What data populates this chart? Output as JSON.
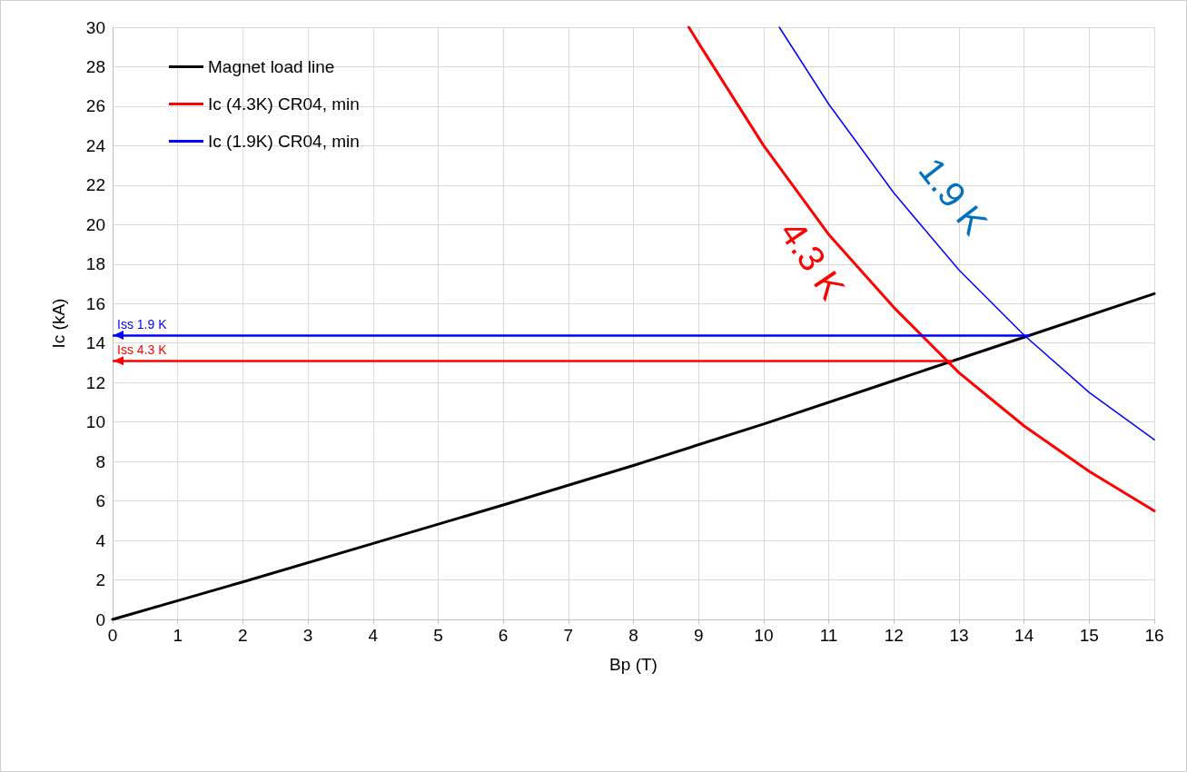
{
  "chart_data": {
    "type": "line",
    "xlabel": "Bp (T)",
    "ylabel": "Ic (kA)",
    "xlim": [
      0,
      16
    ],
    "xticks": [
      0,
      1,
      2,
      3,
      4,
      5,
      6,
      7,
      8,
      9,
      10,
      11,
      12,
      13,
      14,
      15,
      16
    ],
    "ylim": [
      0,
      30
    ],
    "yticks": [
      0,
      2,
      4,
      6,
      8,
      10,
      12,
      14,
      16,
      18,
      20,
      22,
      24,
      26,
      28,
      30
    ],
    "grid": true,
    "legend": "top left",
    "marker": "none",
    "line_style": "solid",
    "series": [
      {
        "name": "Magnet load line",
        "color": "#000000",
        "x": [
          0,
          1,
          2,
          4,
          6,
          8,
          10,
          12,
          14,
          16
        ],
        "values": [
          0,
          0.95,
          1.9,
          3.85,
          5.8,
          7.8,
          9.9,
          12.1,
          14.3,
          16.5
        ]
      },
      {
        "name": "Ic (4.3K) CR04, min",
        "color": "#ff0000",
        "x": [
          8.85,
          9,
          10,
          11,
          12,
          13,
          14,
          15,
          16
        ],
        "values": [
          30,
          29.2,
          24,
          19.5,
          15.8,
          12.5,
          9.8,
          7.5,
          5.5
        ]
      },
      {
        "name": "Ic (1.9K) CR04, min",
        "color": "#0000ff",
        "x": [
          10.24,
          11,
          12,
          13,
          14,
          15,
          16
        ],
        "values": [
          30,
          26.1,
          21.6,
          17.7,
          14.4,
          11.5,
          9.1
        ]
      }
    ],
    "ref_lines": [
      {
        "axis": "y",
        "value": 14.4,
        "label": "Iss 1.9 K",
        "color": "#0000ff"
      },
      {
        "axis": "y",
        "value": 13.1,
        "label": "Iss 4.3 K",
        "color": "#ff0000"
      }
    ],
    "annotations": [
      "1.9 K",
      "4.3 K"
    ]
  }
}
